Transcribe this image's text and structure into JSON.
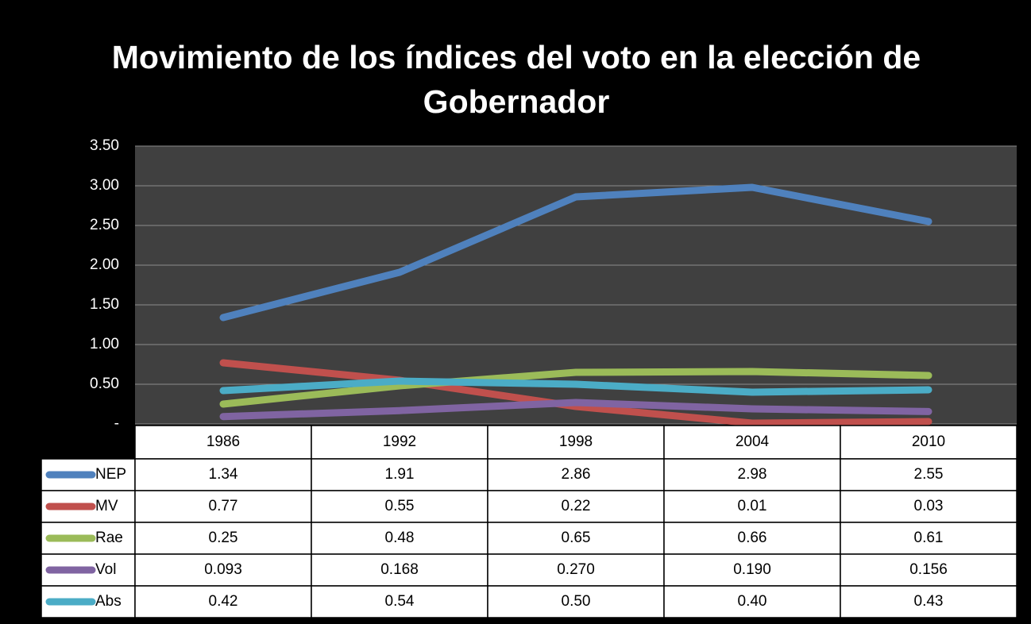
{
  "chart_data": {
    "type": "line",
    "title": "Movimiento de los índices del voto en la elección de Gobernador",
    "categories": [
      "1986",
      "1992",
      "1998",
      "2004",
      "2010"
    ],
    "series": [
      {
        "name": "NEP",
        "color": "#4f81bd",
        "values": [
          1.34,
          1.91,
          2.86,
          2.98,
          2.55
        ],
        "value_labels": [
          "1.34",
          "1.91",
          "2.86",
          "2.98",
          "2.55"
        ]
      },
      {
        "name": "MV",
        "color": "#c0504d",
        "values": [
          0.77,
          0.55,
          0.22,
          0.01,
          0.03
        ],
        "value_labels": [
          "0.77",
          "0.55",
          "0.22",
          "0.01",
          "0.03"
        ]
      },
      {
        "name": "Rae",
        "color": "#9bbb59",
        "values": [
          0.25,
          0.48,
          0.65,
          0.66,
          0.61
        ],
        "value_labels": [
          "0.25",
          "0.48",
          "0.65",
          "0.66",
          "0.61"
        ]
      },
      {
        "name": "Vol",
        "color": "#8064a2",
        "values": [
          0.093,
          0.168,
          0.27,
          0.19,
          0.156
        ],
        "value_labels": [
          "0.093",
          "0.168",
          "0.270",
          "0.190",
          "0.156"
        ]
      },
      {
        "name": "Abs",
        "color": "#4bacc6",
        "values": [
          0.42,
          0.54,
          0.5,
          0.4,
          0.43
        ],
        "value_labels": [
          "0.42",
          "0.54",
          "0.50",
          "0.40",
          "0.43"
        ]
      }
    ],
    "ylim": [
      0,
      3.5
    ],
    "yticks": [
      {
        "value": 0,
        "label": "-"
      },
      {
        "value": 0.5,
        "label": "0.50"
      },
      {
        "value": 1,
        "label": "1.00"
      },
      {
        "value": 1.5,
        "label": "1.50"
      },
      {
        "value": 2,
        "label": "2.00"
      },
      {
        "value": 2.5,
        "label": "2.50"
      },
      {
        "value": 3,
        "label": "3.00"
      },
      {
        "value": 3.5,
        "label": "3.50"
      }
    ],
    "grid": true,
    "data_table": true
  }
}
